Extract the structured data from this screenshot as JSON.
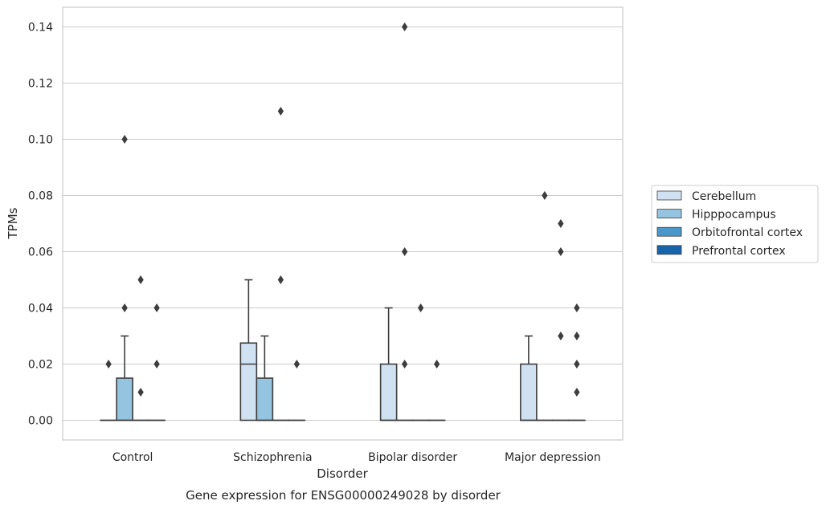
{
  "chart_data": {
    "type": "box",
    "caption": "Gene expression for ENSG00000249028 by disorder",
    "xlabel": "Disorder",
    "ylabel": "TPMs",
    "ylim": [
      -0.007,
      0.147
    ],
    "yticks": [
      "0.00",
      "0.02",
      "0.04",
      "0.06",
      "0.08",
      "0.10",
      "0.12",
      "0.14"
    ],
    "grid": true,
    "legend_position": "right",
    "categories": [
      "Control",
      "Schizophrenia",
      "Bipolar disorder",
      "Major depression"
    ],
    "series": [
      {
        "name": "Cerebellum",
        "color": "#d0e1f2",
        "boxes": [
          {
            "q1": 0,
            "median": 0,
            "q3": 0,
            "whisker_low": 0,
            "whisker_high": 0,
            "outliers": [
              0.02
            ]
          },
          {
            "q1": 0,
            "median": 0.02,
            "q3": 0.0275,
            "whisker_low": 0,
            "whisker_high": 0.05,
            "outliers": []
          },
          {
            "q1": 0,
            "median": 0,
            "q3": 0.02,
            "whisker_low": 0,
            "whisker_high": 0.04,
            "outliers": []
          },
          {
            "q1": 0,
            "median": 0,
            "q3": 0.02,
            "whisker_low": 0,
            "whisker_high": 0.03,
            "outliers": []
          }
        ]
      },
      {
        "name": "Hipppocampus",
        "color": "#94c4df",
        "boxes": [
          {
            "q1": 0,
            "median": 0,
            "q3": 0.015,
            "whisker_low": 0,
            "whisker_high": 0.03,
            "outliers": [
              0.1,
              0.04
            ]
          },
          {
            "q1": 0,
            "median": 0,
            "q3": 0.015,
            "whisker_low": 0,
            "whisker_high": 0.03,
            "outliers": []
          },
          {
            "q1": 0,
            "median": 0,
            "q3": 0,
            "whisker_low": 0,
            "whisker_high": 0,
            "outliers": [
              0.14,
              0.06,
              0.02
            ]
          },
          {
            "q1": 0,
            "median": 0,
            "q3": 0,
            "whisker_low": 0,
            "whisker_high": 0,
            "outliers": [
              0.08
            ]
          }
        ]
      },
      {
        "name": "Orbitofrontal cortex",
        "color": "#4a98c9",
        "boxes": [
          {
            "q1": 0,
            "median": 0,
            "q3": 0,
            "whisker_low": 0,
            "whisker_high": 0,
            "outliers": [
              0.05,
              0.01
            ]
          },
          {
            "q1": 0,
            "median": 0,
            "q3": 0,
            "whisker_low": 0,
            "whisker_high": 0,
            "outliers": [
              0.05,
              0.11
            ]
          },
          {
            "q1": 0,
            "median": 0,
            "q3": 0,
            "whisker_low": 0,
            "whisker_high": 0,
            "outliers": [
              0.04
            ]
          },
          {
            "q1": 0,
            "median": 0,
            "q3": 0,
            "whisker_low": 0,
            "whisker_high": 0,
            "outliers": [
              0.07,
              0.06,
              0.03
            ]
          }
        ]
      },
      {
        "name": "Prefrontal cortex",
        "color": "#1764ab",
        "boxes": [
          {
            "q1": 0,
            "median": 0,
            "q3": 0,
            "whisker_low": 0,
            "whisker_high": 0,
            "outliers": [
              0.04,
              0.02
            ]
          },
          {
            "q1": 0,
            "median": 0,
            "q3": 0,
            "whisker_low": 0,
            "whisker_high": 0,
            "outliers": [
              0.02
            ]
          },
          {
            "q1": 0,
            "median": 0,
            "q3": 0,
            "whisker_low": 0,
            "whisker_high": 0,
            "outliers": [
              0.02
            ]
          },
          {
            "q1": 0,
            "median": 0,
            "q3": 0,
            "whisker_low": 0,
            "whisker_high": 0,
            "outliers": [
              0.03,
              0.01,
              0.04,
              0.02
            ]
          }
        ]
      }
    ]
  }
}
